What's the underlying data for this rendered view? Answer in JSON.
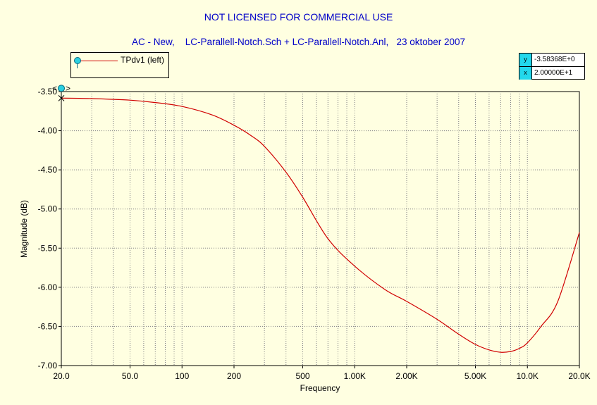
{
  "banner": "NOT LICENSED FOR COMMERCIAL USE",
  "subtitle": "AC - New,    LC-Parallell-Notch.Sch + LC-Parallell-Notch.Anl,   23 oktober 2007",
  "legend": {
    "label": "TPdv1 (left)",
    "line_color": "#d00000",
    "marker_color": "#2ad0e0"
  },
  "cursor_readout": {
    "y_key": "y",
    "y_value": "-3.58368E+0",
    "x_key": "x",
    "x_value": "2.00000E+1"
  },
  "cursor_marker": {
    "left_glyph": "<",
    "right_glyph": ">"
  },
  "chart_data": {
    "type": "line",
    "xlabel": "Frequency",
    "ylabel": "Magnitude  (dB)",
    "x_scale": "log",
    "xlim": [
      20,
      20000
    ],
    "ylim": [
      -7.0,
      -3.5
    ],
    "x_ticks": [
      20,
      50,
      100,
      200,
      500,
      1000,
      2000,
      5000,
      10000,
      20000
    ],
    "x_tick_labels": [
      "20.0",
      "50.0",
      "100",
      "200",
      "500",
      "1.00K",
      "2.00K",
      "5.00K",
      "10.0K",
      "20.0K"
    ],
    "y_ticks": [
      -3.5,
      -4.0,
      -4.5,
      -5.0,
      -5.5,
      -6.0,
      -6.5,
      -7.0
    ],
    "y_tick_labels": [
      "-3.50",
      "-4.00",
      "-4.50",
      "-5.00",
      "-5.50",
      "-6.00",
      "-6.50",
      "-7.00"
    ],
    "grid": true,
    "series": [
      {
        "name": "TPdv1 (left)",
        "color": "#d00000",
        "x": [
          20,
          30,
          50,
          70,
          100,
          150,
          200,
          250,
          300,
          400,
          500,
          700,
          1000,
          1500,
          2000,
          3000,
          4000,
          5000,
          6000,
          7000,
          8000,
          9000,
          10000,
          12000,
          15000,
          20000
        ],
        "y": [
          -3.584,
          -3.59,
          -3.61,
          -3.64,
          -3.69,
          -3.8,
          -3.93,
          -4.06,
          -4.2,
          -4.53,
          -4.85,
          -5.38,
          -5.73,
          -6.03,
          -6.18,
          -6.41,
          -6.6,
          -6.73,
          -6.8,
          -6.83,
          -6.82,
          -6.78,
          -6.71,
          -6.5,
          -6.18,
          -5.3
        ]
      }
    ]
  }
}
